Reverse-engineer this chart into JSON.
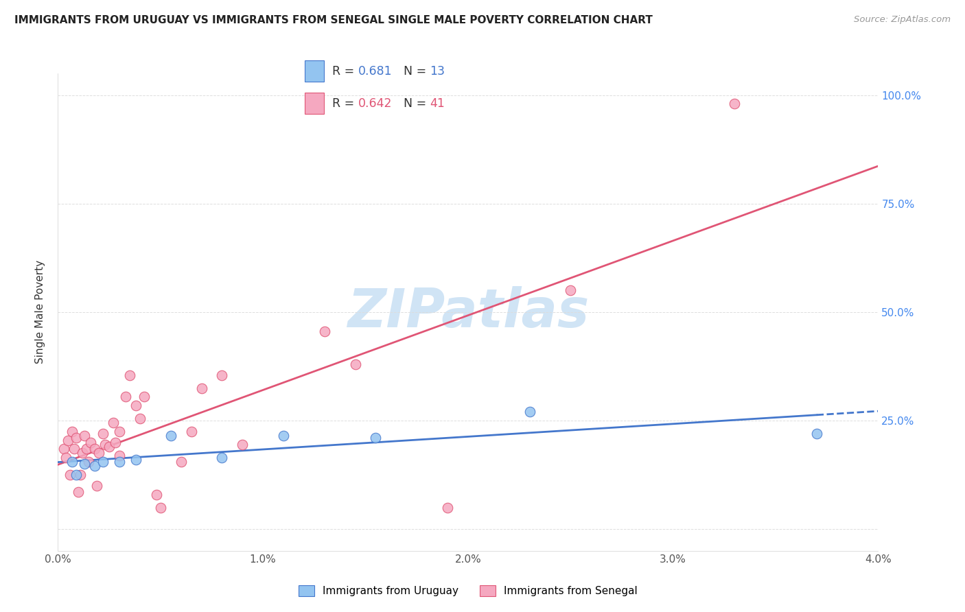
{
  "title": "IMMIGRANTS FROM URUGUAY VS IMMIGRANTS FROM SENEGAL SINGLE MALE POVERTY CORRELATION CHART",
  "source": "Source: ZipAtlas.com",
  "ylabel": "Single Male Poverty",
  "xlim": [
    0.0,
    0.04
  ],
  "ylim": [
    -0.05,
    1.05
  ],
  "xticks": [
    0.0,
    0.01,
    0.02,
    0.03,
    0.04
  ],
  "xtick_labels": [
    "0.0%",
    "1.0%",
    "2.0%",
    "3.0%",
    "4.0%"
  ],
  "yticks": [
    0.0,
    0.25,
    0.5,
    0.75,
    1.0
  ],
  "ytick_labels_right": [
    "",
    "25.0%",
    "50.0%",
    "75.0%",
    "100.0%"
  ],
  "color_uruguay": "#93C4F0",
  "color_senegal": "#F5A8C0",
  "trendline_color_uruguay": "#4477CC",
  "trendline_color_senegal": "#E05575",
  "watermark_color": "#D0E4F5",
  "grid_color": "#DDDDDD",
  "background_color": "#FFFFFF",
  "marker_size": 110,
  "uruguay_x": [
    0.0007,
    0.0009,
    0.0013,
    0.0018,
    0.0022,
    0.003,
    0.0038,
    0.0055,
    0.008,
    0.011,
    0.0155,
    0.023,
    0.037
  ],
  "uruguay_y": [
    0.155,
    0.125,
    0.15,
    0.145,
    0.155,
    0.155,
    0.16,
    0.215,
    0.165,
    0.215,
    0.21,
    0.27,
    0.22
  ],
  "senegal_x": [
    0.0003,
    0.0004,
    0.0005,
    0.0006,
    0.0007,
    0.0008,
    0.0009,
    0.001,
    0.0011,
    0.0012,
    0.0013,
    0.0014,
    0.0015,
    0.0016,
    0.0018,
    0.0019,
    0.002,
    0.0022,
    0.0023,
    0.0025,
    0.0027,
    0.0028,
    0.003,
    0.003,
    0.0033,
    0.0035,
    0.0038,
    0.004,
    0.0042,
    0.0048,
    0.005,
    0.006,
    0.0065,
    0.007,
    0.008,
    0.009,
    0.013,
    0.0145,
    0.019,
    0.025,
    0.033
  ],
  "senegal_y": [
    0.185,
    0.165,
    0.205,
    0.125,
    0.225,
    0.185,
    0.21,
    0.085,
    0.125,
    0.175,
    0.215,
    0.185,
    0.155,
    0.2,
    0.185,
    0.1,
    0.175,
    0.22,
    0.195,
    0.19,
    0.245,
    0.2,
    0.225,
    0.17,
    0.305,
    0.355,
    0.285,
    0.255,
    0.305,
    0.08,
    0.05,
    0.155,
    0.225,
    0.325,
    0.355,
    0.195,
    0.455,
    0.38,
    0.05,
    0.55,
    0.98
  ]
}
